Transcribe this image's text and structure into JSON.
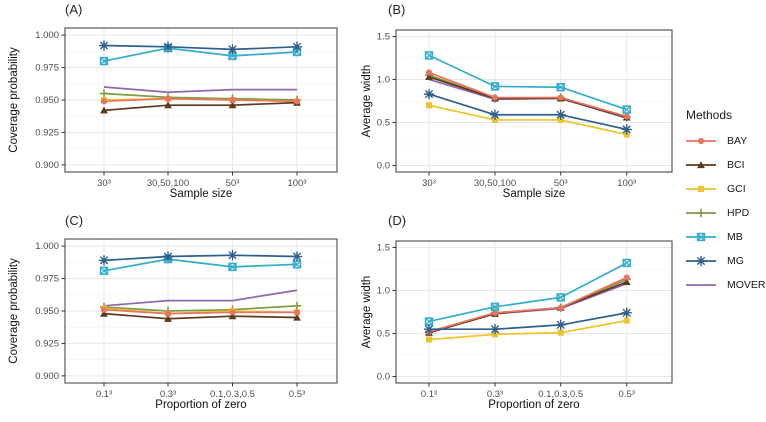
{
  "background": "#ffffff",
  "styles": {
    "grid_major": "#e7e7e7",
    "grid_minor": "#f4f4f4",
    "panel_border": "#4a4a4a",
    "tick_mark": "#333333",
    "tick_label_color": "#4d4d4d",
    "axis_title_color": "#111111"
  },
  "legend": {
    "title": "Methods",
    "entries": [
      {
        "label": "BAY",
        "color": "#E8745E",
        "marker": "circle"
      },
      {
        "label": "BCI",
        "color": "#5D3A1F",
        "marker": "triangle"
      },
      {
        "label": "GCI",
        "color": "#EEC32B",
        "marker": "square"
      },
      {
        "label": "HPD",
        "color": "#7D9C40",
        "marker": "plus"
      },
      {
        "label": "MB",
        "color": "#33ADCC",
        "marker": "square-cross"
      },
      {
        "label": "MG",
        "color": "#2E608C",
        "marker": "asterisk"
      },
      {
        "label": "MOVER",
        "color": "#9066AD",
        "marker": "none"
      }
    ]
  },
  "chart_data": [
    {
      "type": "line",
      "tag": "(A)",
      "xlabel": "Sample size",
      "ylabel": "Coverage probability",
      "categories": [
        "30³",
        "30,50,100",
        "50³",
        "100³"
      ],
      "yticks": [
        1.0,
        0.975,
        0.95,
        0.925,
        0.9
      ],
      "ytick_labels": [
        "1.000",
        "0.975",
        "0.950",
        "0.925",
        "0.900"
      ],
      "yticks_minor": [
        0.9875,
        0.9625,
        0.9375,
        0.9125
      ],
      "ylim": [
        0.8945,
        1.0055
      ],
      "grid": true,
      "legend_position": "right-of-figure",
      "series": [
        {
          "name": "BAY",
          "values": [
            0.949,
            0.951,
            0.95,
            0.949
          ]
        },
        {
          "name": "BCI",
          "values": [
            0.942,
            0.946,
            0.946,
            0.948
          ]
        },
        {
          "name": "GCI",
          "values": [
            0.95,
            0.951,
            0.95,
            0.949
          ]
        },
        {
          "name": "HPD",
          "values": [
            0.955,
            0.952,
            0.951,
            0.95
          ]
        },
        {
          "name": "MB",
          "values": [
            0.98,
            0.99,
            0.984,
            0.987
          ]
        },
        {
          "name": "MG",
          "values": [
            0.992,
            0.991,
            0.989,
            0.991
          ]
        },
        {
          "name": "MOVER",
          "values": [
            0.96,
            0.956,
            0.958,
            0.958
          ]
        }
      ]
    },
    {
      "type": "line",
      "tag": "(B)",
      "xlabel": "Sample size",
      "ylabel": "Average width",
      "categories": [
        "30³",
        "30,50,100",
        "50³",
        "100³"
      ],
      "yticks": [
        1.5,
        1.0,
        0.5,
        0.0
      ],
      "ytick_labels": [
        "1.5",
        "1.0",
        "0.5",
        "0.0"
      ],
      "yticks_minor": [
        1.25,
        0.75,
        0.25
      ],
      "ylim": [
        -0.075,
        1.575
      ],
      "grid": true,
      "series": [
        {
          "name": "BAY",
          "values": [
            1.08,
            0.79,
            0.79,
            0.57
          ]
        },
        {
          "name": "BCI",
          "values": [
            1.03,
            0.78,
            0.78,
            0.56
          ]
        },
        {
          "name": "GCI",
          "values": [
            0.7,
            0.53,
            0.53,
            0.36
          ]
        },
        {
          "name": "HPD",
          "values": [
            1.05,
            0.78,
            0.79,
            0.56
          ]
        },
        {
          "name": "MB",
          "values": [
            1.28,
            0.92,
            0.91,
            0.65
          ]
        },
        {
          "name": "MG",
          "values": [
            0.83,
            0.59,
            0.59,
            0.42
          ]
        },
        {
          "name": "MOVER",
          "values": [
            1.0,
            0.77,
            0.78,
            0.55
          ]
        }
      ]
    },
    {
      "type": "line",
      "tag": "(C)",
      "xlabel": "Proportion of zero",
      "ylabel": "Coverage probability",
      "categories": [
        "0.1³",
        "0.3³",
        "0.1,0.3,0.5",
        "0.5³"
      ],
      "yticks": [
        1.0,
        0.975,
        0.95,
        0.925,
        0.9
      ],
      "ytick_labels": [
        "1.000",
        "0.975",
        "0.950",
        "0.925",
        "0.900"
      ],
      "yticks_minor": [
        0.9875,
        0.9625,
        0.9375,
        0.9125
      ],
      "ylim": [
        0.8945,
        1.0055
      ],
      "grid": true,
      "series": [
        {
          "name": "BAY",
          "values": [
            0.951,
            0.948,
            0.949,
            0.949
          ]
        },
        {
          "name": "BCI",
          "values": [
            0.948,
            0.944,
            0.946,
            0.945
          ]
        },
        {
          "name": "GCI",
          "values": [
            0.952,
            0.948,
            0.95,
            0.949
          ]
        },
        {
          "name": "HPD",
          "values": [
            0.953,
            0.95,
            0.951,
            0.954
          ]
        },
        {
          "name": "MB",
          "values": [
            0.981,
            0.99,
            0.984,
            0.986
          ]
        },
        {
          "name": "MG",
          "values": [
            0.989,
            0.992,
            0.993,
            0.992
          ]
        },
        {
          "name": "MOVER",
          "values": [
            0.954,
            0.958,
            0.958,
            0.966
          ]
        }
      ]
    },
    {
      "type": "line",
      "tag": "(D)",
      "xlabel": "Proportion of zero",
      "ylabel": "Average width",
      "categories": [
        "0.1³",
        "0.3³",
        "0.1,0.3,0.5",
        "0.5³"
      ],
      "yticks": [
        1.5,
        1.0,
        0.5,
        0.0
      ],
      "ytick_labels": [
        "1.5",
        "1.0",
        "0.5",
        "0.0"
      ],
      "yticks_minor": [
        1.25,
        0.75,
        0.25
      ],
      "ylim": [
        -0.075,
        1.575
      ],
      "grid": true,
      "series": [
        {
          "name": "BAY",
          "values": [
            0.52,
            0.74,
            0.8,
            1.15
          ]
        },
        {
          "name": "BCI",
          "values": [
            0.51,
            0.73,
            0.8,
            1.1
          ]
        },
        {
          "name": "GCI",
          "values": [
            0.43,
            0.49,
            0.51,
            0.65
          ]
        },
        {
          "name": "HPD",
          "values": [
            0.52,
            0.74,
            0.8,
            1.13
          ]
        },
        {
          "name": "MB",
          "values": [
            0.64,
            0.81,
            0.92,
            1.32
          ]
        },
        {
          "name": "MG",
          "values": [
            0.55,
            0.55,
            0.6,
            0.74
          ]
        },
        {
          "name": "MOVER",
          "values": [
            0.51,
            0.73,
            0.79,
            1.08
          ]
        }
      ]
    }
  ]
}
